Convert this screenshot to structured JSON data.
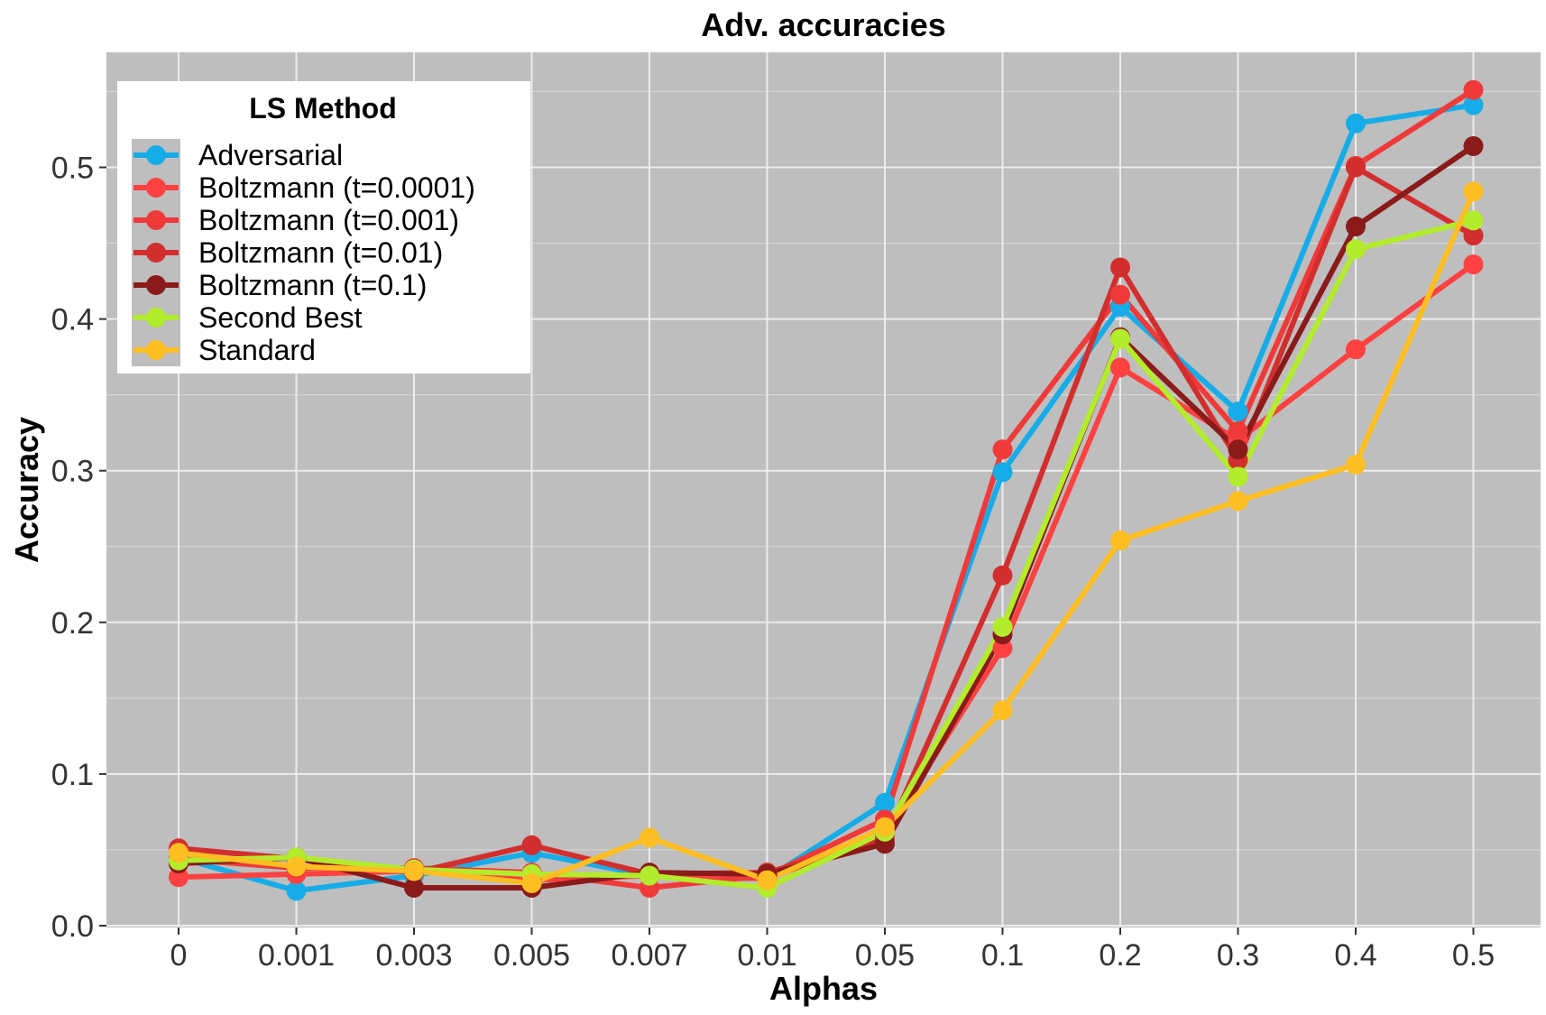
{
  "chart_data": {
    "type": "line",
    "title": "Adv. accuracies",
    "xlabel": "Alphas",
    "ylabel": "Accuracy",
    "categories": [
      "0",
      "0.001",
      "0.003",
      "0.005",
      "0.007",
      "0.01",
      "0.05",
      "0.1",
      "0.2",
      "0.3",
      "0.4",
      "0.5"
    ],
    "ylim": [
      0,
      0.56
    ],
    "yticks": [
      0.0,
      0.1,
      0.2,
      0.3,
      0.4,
      0.5
    ],
    "ytick_labels": [
      "0.0",
      "0.1",
      "0.2",
      "0.3",
      "0.4",
      "0.5"
    ],
    "grid": true,
    "background": "#bebebe",
    "legend": {
      "title": "LS Method",
      "position": "top-left"
    },
    "series": [
      {
        "name": "Adversarial",
        "color": "#16ace8",
        "values": [
          0.045,
          0.023,
          0.033,
          0.048,
          0.033,
          0.031,
          0.081,
          0.299,
          0.408,
          0.339,
          0.529,
          0.541
        ]
      },
      {
        "name": "Boltzmann (t=0.0001)",
        "color": "#ff4141",
        "values": [
          0.032,
          0.034,
          0.036,
          0.03,
          0.033,
          0.031,
          0.06,
          0.183,
          0.368,
          0.32,
          0.38,
          0.436
        ]
      },
      {
        "name": "Boltzmann (t=0.001)",
        "color": "#f03a3a",
        "values": [
          0.044,
          0.038,
          0.038,
          0.035,
          0.025,
          0.033,
          0.07,
          0.314,
          0.416,
          0.326,
          0.501,
          0.551
        ]
      },
      {
        "name": "Boltzmann (t=0.01)",
        "color": "#d32e2e",
        "values": [
          0.051,
          0.044,
          0.035,
          0.053,
          0.034,
          0.035,
          0.057,
          0.231,
          0.434,
          0.307,
          0.5,
          0.455
        ]
      },
      {
        "name": "Boltzmann (t=0.1)",
        "color": "#8b1a1a",
        "values": [
          0.041,
          0.045,
          0.025,
          0.025,
          0.035,
          0.034,
          0.054,
          0.192,
          0.388,
          0.314,
          0.461,
          0.514
        ]
      },
      {
        "name": "Second Best",
        "color": "#b2ec2c",
        "values": [
          0.043,
          0.045,
          0.037,
          0.034,
          0.033,
          0.025,
          0.062,
          0.197,
          0.387,
          0.296,
          0.446,
          0.465
        ]
      },
      {
        "name": "Standard",
        "color": "#ffbe22",
        "values": [
          0.048,
          0.039,
          0.036,
          0.028,
          0.058,
          0.03,
          0.065,
          0.142,
          0.254,
          0.28,
          0.304,
          0.484
        ]
      }
    ]
  }
}
